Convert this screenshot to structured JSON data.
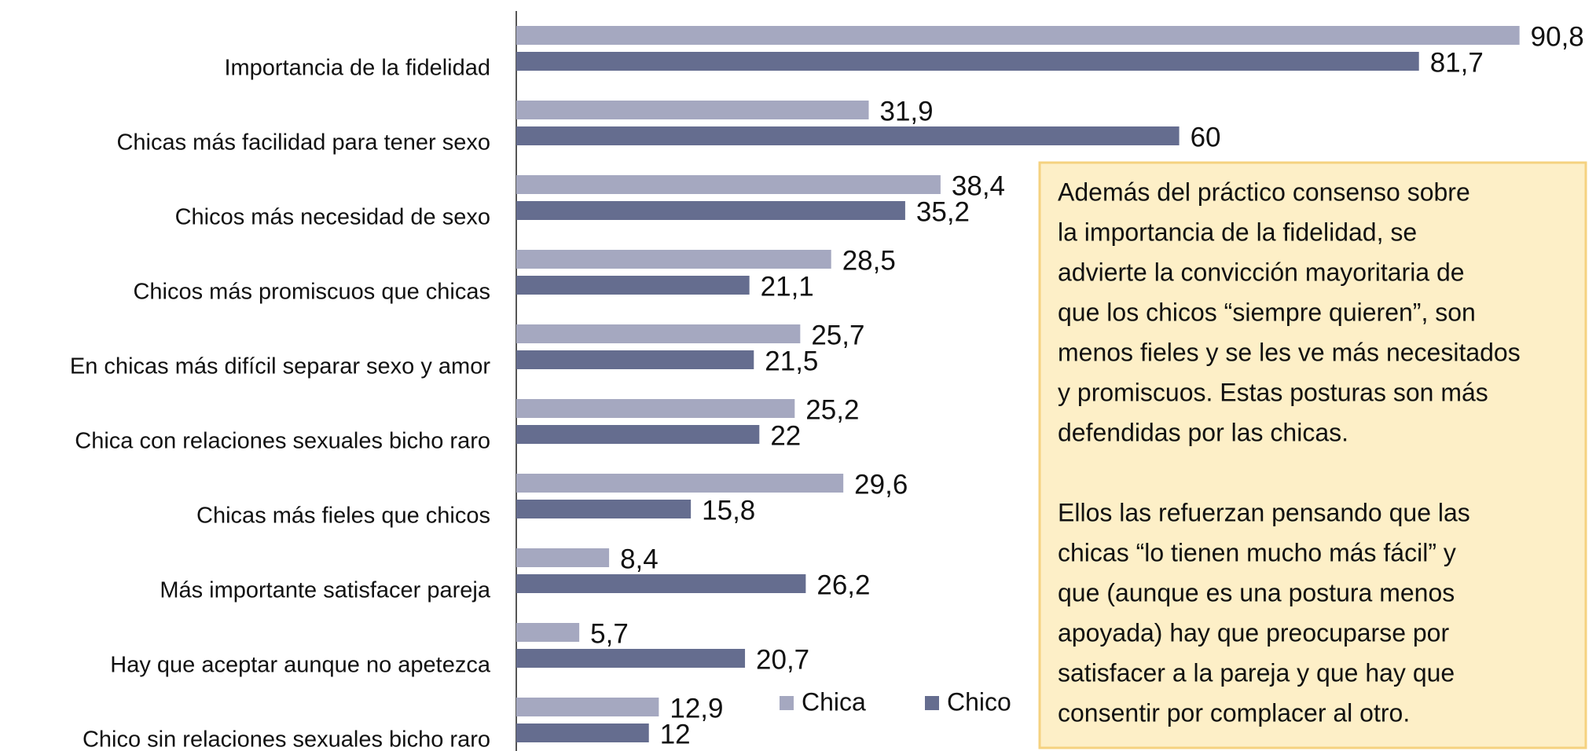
{
  "chart_data": {
    "type": "bar",
    "orientation": "horizontal",
    "categories": [
      "Importancia de la fidelidad",
      "Chicas más facilidad para tener sexo",
      "Chicos más necesidad de sexo",
      "Chicos más promiscuos que chicas",
      "En chicas más difícil separar sexo y amor",
      "Chica con relaciones sexuales bicho raro",
      "Chicas más fieles que chicos",
      "Más importante satisfacer pareja",
      "Hay que aceptar aunque no apetezca",
      "Chico sin relaciones sexuales bicho raro"
    ],
    "series": [
      {
        "name": "Chica",
        "color": "#a5a8c0",
        "values": [
          90.8,
          31.9,
          38.4,
          28.5,
          25.7,
          25.2,
          29.6,
          8.4,
          5.7,
          12.9
        ],
        "value_labels": [
          "90,8",
          "31,9",
          "38,4",
          "28,5",
          "25,7",
          "25,2",
          "29,6",
          "8,4",
          "5,7",
          "12,9"
        ]
      },
      {
        "name": "Chico",
        "color": "#656d8f",
        "values": [
          81.7,
          60,
          35.2,
          21.1,
          21.5,
          22,
          15.8,
          26.2,
          20.7,
          12
        ],
        "value_labels": [
          "81,7",
          "60",
          "35,2",
          "21,1",
          "21,5",
          "22",
          "15,8",
          "26,2",
          "20,7",
          "12"
        ]
      }
    ],
    "xlim": [
      0,
      100
    ],
    "legend": "bottom-right",
    "annotation": [
      [
        "Además del práctico consenso sobre",
        "la importancia de la fidelidad, se",
        "advierte la convicción mayoritaria de",
        "que los chicos “siempre quieren”, son",
        "menos fieles y se les ve más necesitados",
        "y promiscuos. Estas posturas son más",
        "defendidas por las chicas."
      ],
      [
        "Ellos las refuerzan pensando que las",
        "chicas “lo tienen mucho más fácil” y",
        "que (aunque es una postura menos",
        "apoyada) hay que preocuparse por",
        "satisfacer a la pareja y que hay que",
        "consentir por complacer al otro."
      ]
    ]
  }
}
